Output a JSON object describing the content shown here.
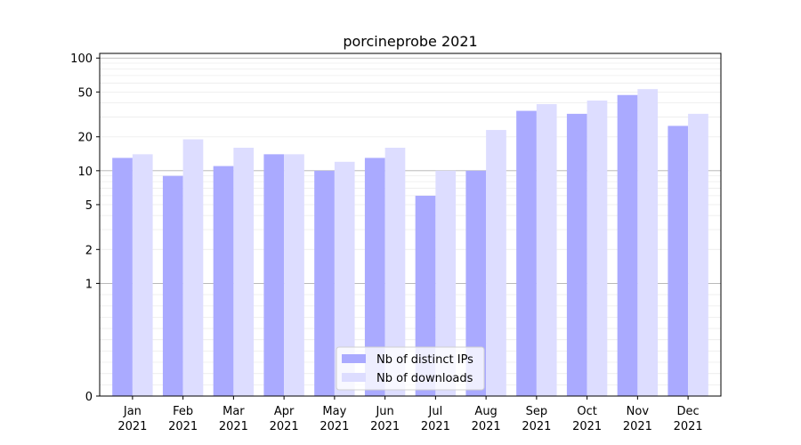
{
  "chart_data": {
    "type": "bar",
    "title": "porcineprobe 2021",
    "xlabel": "",
    "ylabel": "",
    "yscale": "symlog",
    "ylim": [
      0,
      110
    ],
    "yticks": [
      0,
      1,
      2,
      5,
      10,
      20,
      50,
      100
    ],
    "ytick_labels": [
      "0",
      "1",
      "2",
      "5",
      "10",
      "20",
      "50",
      "100"
    ],
    "grid": true,
    "legend_position": "bottom-center",
    "categories": [
      [
        "Jan",
        "2021"
      ],
      [
        "Feb",
        "2021"
      ],
      [
        "Mar",
        "2021"
      ],
      [
        "Apr",
        "2021"
      ],
      [
        "May",
        "2021"
      ],
      [
        "Jun",
        "2021"
      ],
      [
        "Jul",
        "2021"
      ],
      [
        "Aug",
        "2021"
      ],
      [
        "Sep",
        "2021"
      ],
      [
        "Oct",
        "2021"
      ],
      [
        "Nov",
        "2021"
      ],
      [
        "Dec",
        "2021"
      ]
    ],
    "series": [
      {
        "name": "Nb of distinct IPs",
        "color": "#aaaaff",
        "values": [
          13,
          9,
          11,
          14,
          10,
          13,
          6,
          10,
          34,
          32,
          47,
          25
        ]
      },
      {
        "name": "Nb of downloads",
        "color": "#ddddff",
        "values": [
          14,
          19,
          16,
          14,
          12,
          16,
          10,
          23,
          39,
          42,
          53,
          32
        ]
      }
    ]
  }
}
